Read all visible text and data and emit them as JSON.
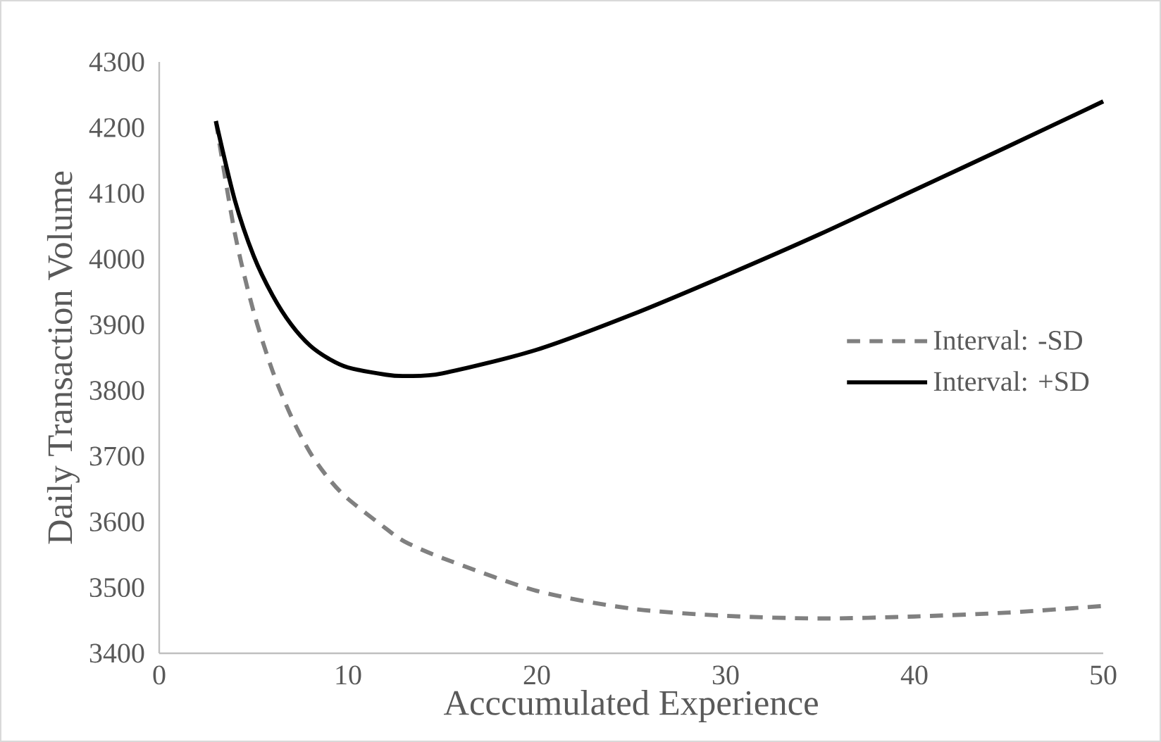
{
  "chart_data": {
    "type": "line",
    "xlabel": "Acccumulated Experience",
    "ylabel": "Daily Transaction Volume",
    "xlim": [
      0,
      50
    ],
    "xticks": [
      0,
      10,
      20,
      30,
      40,
      50
    ],
    "ylim": [
      3400,
      4300
    ],
    "yticks": [
      3400,
      3500,
      3600,
      3700,
      3800,
      3900,
      4000,
      4100,
      4200,
      4300
    ],
    "x": [
      3,
      4,
      5,
      6,
      7,
      8,
      9,
      10,
      12,
      13,
      15,
      20,
      25,
      30,
      35,
      40,
      45,
      50
    ],
    "grid": false,
    "legend": "right",
    "marker": "none",
    "series": [
      {
        "name": "Interval: -SD",
        "color": "#808080",
        "line_style": "dashed",
        "values": [
          4210,
          4040,
          3920,
          3830,
          3760,
          3705,
          3665,
          3635,
          3590,
          3570,
          3545,
          3495,
          3468,
          3457,
          3453,
          3456,
          3462,
          3472
        ]
      },
      {
        "name": "Interval: +SD",
        "color": "#000000",
        "line_style": "solid",
        "values": [
          4210,
          4090,
          4005,
          3945,
          3900,
          3868,
          3848,
          3835,
          3824,
          3822,
          3826,
          3862,
          3915,
          3975,
          4038,
          4105,
          4172,
          4240
        ]
      }
    ]
  }
}
